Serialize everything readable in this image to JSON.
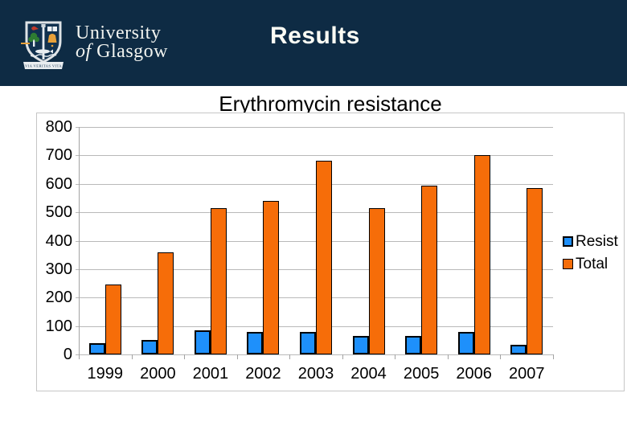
{
  "slide": {
    "header": {
      "logo": {
        "line1": "University",
        "line2_prefix": "of",
        "line2_rest": " Glasgow",
        "motto": "VIA VERITAS VITA"
      },
      "title": "Results"
    },
    "subtitle": "Erythromycin resistance"
  },
  "colors": {
    "header_bg": "#0e2b44",
    "resist_bar": "#1e90fb",
    "total_bar": "#f66d09",
    "gridline": "#b9b9b9"
  },
  "chart_data": {
    "type": "bar",
    "title": "Erythromycin resistance",
    "categories": [
      "1999",
      "2000",
      "2001",
      "2002",
      "2003",
      "2004",
      "2005",
      "2006",
      "2007"
    ],
    "series": [
      {
        "name": "Resist",
        "color": "#1e90fb",
        "values": [
          40,
          50,
          85,
          80,
          80,
          65,
          65,
          80,
          35
        ]
      },
      {
        "name": "Total",
        "color": "#f66d09",
        "values": [
          245,
          360,
          515,
          540,
          680,
          515,
          595,
          700,
          585
        ]
      }
    ],
    "xlabel": "",
    "ylabel": "",
    "ylim": [
      0,
      800
    ],
    "yticks": [
      0,
      100,
      200,
      300,
      400,
      500,
      600,
      700,
      800
    ],
    "grid": true,
    "legend_position": "right"
  }
}
